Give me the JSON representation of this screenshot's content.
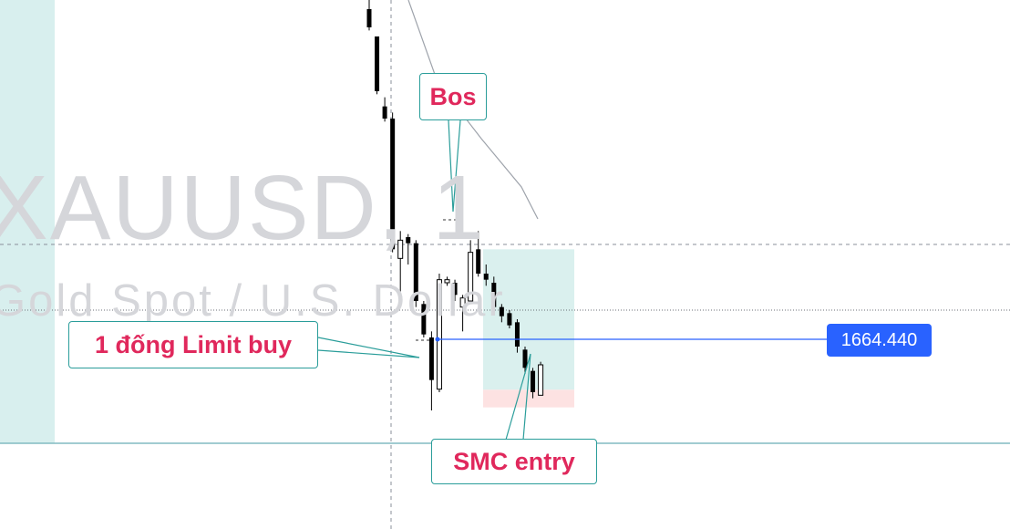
{
  "watermark": {
    "symbol": "XAUUSD, 1",
    "description": "Gold Spot / U.S. Dollar"
  },
  "annotations": {
    "bos": "Bos",
    "limit_buy": "1 đống Limit buy",
    "smc_entry": "SMC entry"
  },
  "price_label": "1664.440",
  "colors": {
    "accent_blue": "#2962ff",
    "callout_text": "#e0285c",
    "callout_border": "#2a9d9a",
    "target_zone": "#daf0ee",
    "stop_zone": "#fde2e2",
    "session_band": "#d8efee",
    "candle_body": "#000000"
  },
  "chart_data": {
    "type": "candlestick",
    "title": "",
    "xlabel": "",
    "ylabel": "",
    "ylim": [
      1663.5,
      1671.0
    ],
    "position_tool": {
      "entry": 1664.44,
      "stop": 1664.15,
      "target": 1666.75
    },
    "horizontal_level": 1666.2,
    "candles": [
      {
        "o": 1670.7,
        "h": 1671.0,
        "l": 1670.35,
        "c": 1670.4
      },
      {
        "o": 1670.25,
        "h": 1670.25,
        "l": 1669.3,
        "c": 1669.35
      },
      {
        "o": 1669.1,
        "h": 1669.25,
        "l": 1668.85,
        "c": 1668.9
      },
      {
        "o": 1668.9,
        "h": 1669.0,
        "l": 1666.7,
        "c": 1666.75
      },
      {
        "o": 1666.6,
        "h": 1667.05,
        "l": 1666.05,
        "c": 1666.9
      },
      {
        "o": 1666.95,
        "h": 1667.0,
        "l": 1666.5,
        "c": 1666.85
      },
      {
        "o": 1666.85,
        "h": 1666.9,
        "l": 1665.8,
        "c": 1665.9
      },
      {
        "o": 1665.85,
        "h": 1665.9,
        "l": 1665.3,
        "c": 1665.35
      },
      {
        "o": 1665.3,
        "h": 1665.4,
        "l": 1664.1,
        "c": 1664.6
      },
      {
        "o": 1664.45,
        "h": 1666.35,
        "l": 1664.4,
        "c": 1666.25
      },
      {
        "o": 1666.2,
        "h": 1666.3,
        "l": 1666.15,
        "c": 1666.25
      },
      {
        "o": 1666.2,
        "h": 1666.25,
        "l": 1665.9,
        "c": 1666.0
      },
      {
        "o": 1665.8,
        "h": 1666.0,
        "l": 1665.4,
        "c": 1665.95
      },
      {
        "o": 1665.9,
        "h": 1666.9,
        "l": 1665.9,
        "c": 1666.7
      },
      {
        "o": 1666.75,
        "h": 1667.05,
        "l": 1666.3,
        "c": 1666.35
      },
      {
        "o": 1666.35,
        "h": 1666.5,
        "l": 1666.15,
        "c": 1666.25
      },
      {
        "o": 1666.2,
        "h": 1666.3,
        "l": 1665.7,
        "c": 1665.8
      },
      {
        "o": 1665.8,
        "h": 1665.85,
        "l": 1665.55,
        "c": 1665.65
      },
      {
        "o": 1665.7,
        "h": 1665.75,
        "l": 1665.45,
        "c": 1665.5
      },
      {
        "o": 1665.55,
        "h": 1665.6,
        "l": 1665.05,
        "c": 1665.15
      },
      {
        "o": 1665.1,
        "h": 1665.15,
        "l": 1664.7,
        "c": 1664.8
      },
      {
        "o": 1664.75,
        "h": 1664.8,
        "l": 1664.3,
        "c": 1664.4
      },
      {
        "o": 1664.35,
        "h": 1664.9,
        "l": 1664.35,
        "c": 1664.85
      }
    ]
  }
}
